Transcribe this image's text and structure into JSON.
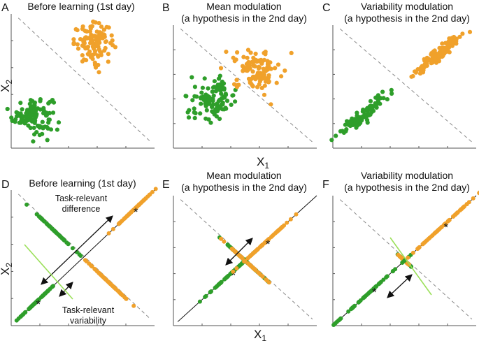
{
  "colors": {
    "green": "#2e9e2a",
    "orange": "#f0a12b",
    "lightgreen": "#9be05a",
    "axis": "#555555",
    "dash": "#8a8a8a"
  },
  "chart_data": [
    {
      "type": "scatter",
      "label": "A",
      "title": [
        "Before learning (1st day)"
      ],
      "xlabel": "",
      "ylabel": "X2",
      "series": [
        {
          "name": "green",
          "cx": 0.15,
          "cy": 0.25,
          "sx": 0.07,
          "sy": 0.07,
          "rho": 0.0,
          "n": 110
        },
        {
          "name": "orange",
          "cx": 0.58,
          "cy": 0.78,
          "sx": 0.07,
          "sy": 0.07,
          "rho": 0.0,
          "n": 110
        }
      ]
    },
    {
      "type": "scatter",
      "label": "B",
      "title": [
        "Mean modulation",
        "(a hypothesis in the 2nd day)"
      ],
      "xlabel": "X1",
      "ylabel": "",
      "series": [
        {
          "name": "green",
          "cx": 0.28,
          "cy": 0.4,
          "sx": 0.08,
          "sy": 0.08,
          "rho": 0.0,
          "n": 110
        },
        {
          "name": "orange",
          "cx": 0.58,
          "cy": 0.64,
          "sx": 0.08,
          "sy": 0.08,
          "rho": 0.0,
          "n": 110
        }
      ]
    },
    {
      "type": "scatter",
      "label": "C",
      "title": [
        "Variability modulation",
        "(a hypothesis in the 2nd day)"
      ],
      "xlabel": "",
      "ylabel": "",
      "series": [
        {
          "name": "green",
          "cx": 0.22,
          "cy": 0.28,
          "sx": 0.085,
          "sy": 0.085,
          "rho": 0.94,
          "n": 110
        },
        {
          "name": "orange",
          "cx": 0.74,
          "cy": 0.77,
          "sx": 0.085,
          "sy": 0.085,
          "rho": 0.94,
          "n": 110
        }
      ]
    },
    {
      "type": "projection",
      "label": "D",
      "title": [
        "Before learning (1st day)"
      ],
      "xlabel": "",
      "ylabel": "X2",
      "series": [
        {
          "name": "green",
          "proj_mean": 0.17,
          "proj_sd": 0.07,
          "orth_mean": 0.3,
          "orth_sd": 0.075
        },
        {
          "name": "orange",
          "proj_mean": 0.85,
          "proj_sd": 0.07,
          "orth_mean": 0.68,
          "orth_sd": 0.075
        }
      ],
      "annotations": [
        "Task-relevant",
        "difference",
        "Task-relevant",
        "variability"
      ]
    },
    {
      "type": "projection",
      "label": "E",
      "title": [
        "Mean modulation",
        "(a hypothesis in the 2nd day)"
      ],
      "xlabel": "X1",
      "ylabel": "",
      "series": [
        {
          "name": "green",
          "proj_mean": 0.4,
          "proj_sd": 0.08,
          "orth_mean": 0.5,
          "orth_sd": 0.08
        },
        {
          "name": "orange",
          "proj_mean": 0.64,
          "proj_sd": 0.08,
          "orth_mean": 0.5,
          "orth_sd": 0.08
        }
      ]
    },
    {
      "type": "projection",
      "label": "F",
      "title": [
        "Variability modulation",
        "(a hypothesis in the 2nd day)"
      ],
      "xlabel": "",
      "ylabel": "",
      "series": [
        {
          "name": "green",
          "proj_mean": 0.27,
          "proj_sd": 0.13,
          "orth_mean": 0.5,
          "orth_sd": 0.02
        },
        {
          "name": "orange",
          "proj_mean": 0.77,
          "proj_sd": 0.13,
          "orth_mean": 0.5,
          "orth_sd": 0.02
        }
      ]
    }
  ]
}
